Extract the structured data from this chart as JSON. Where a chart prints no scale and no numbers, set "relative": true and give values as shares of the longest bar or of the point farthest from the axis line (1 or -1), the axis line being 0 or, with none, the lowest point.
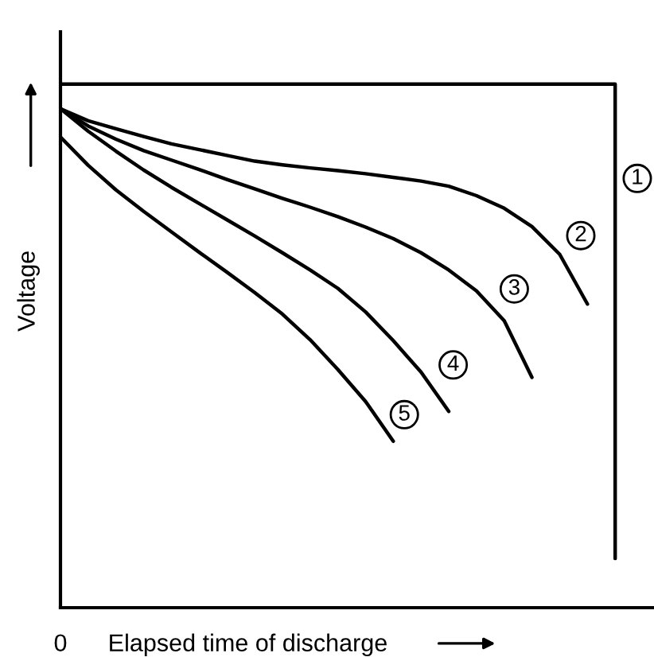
{
  "chart_data": {
    "type": "line",
    "relative": true,
    "xlabel": "Elapsed time of discharge",
    "ylabel": "Voltage",
    "annotations": [
      "0"
    ],
    "marker": "none",
    "line_style": "solid",
    "categories": [
      null,
      null,
      null,
      null,
      null,
      null,
      null,
      null,
      null,
      null,
      null,
      null,
      null,
      null,
      null,
      null,
      null,
      null,
      null,
      null,
      null
    ],
    "series": [
      {
        "name": "1",
        "type": "step",
        "color": "#000000",
        "values": [
          1,
          1,
          1,
          1,
          1,
          1,
          1,
          1,
          1,
          1,
          1,
          1,
          1,
          1,
          1,
          1,
          1,
          1,
          1,
          1,
          0.094
        ]
      },
      {
        "name": "2",
        "color": "#000000",
        "values": [
          0.953,
          0.93,
          0.915,
          0.9,
          0.886,
          0.875,
          0.864,
          0.853,
          0.846,
          0.84,
          0.835,
          0.829,
          0.822,
          0.815,
          0.805,
          0.787,
          0.763,
          0.728,
          0.675,
          0.58,
          null
        ]
      },
      {
        "name": "3",
        "color": "#000000",
        "values": [
          0.953,
          0.92,
          0.895,
          0.873,
          0.855,
          0.837,
          0.818,
          0.8,
          0.782,
          0.765,
          0.747,
          0.727,
          0.705,
          0.678,
          0.645,
          0.605,
          0.548,
          0.44,
          null,
          null,
          null
        ]
      },
      {
        "name": "4",
        "color": "#000000",
        "values": [
          0.953,
          0.91,
          0.872,
          0.836,
          0.803,
          0.772,
          0.741,
          0.71,
          0.678,
          0.645,
          0.61,
          0.565,
          0.51,
          0.45,
          0.375,
          null,
          null,
          null,
          null,
          null,
          null
        ]
      },
      {
        "name": "5",
        "color": "#000000",
        "values": [
          0.899,
          0.845,
          0.798,
          0.757,
          0.718,
          0.679,
          0.641,
          0.602,
          0.561,
          0.512,
          0.455,
          0.394,
          0.318,
          null,
          null,
          null,
          null,
          null,
          null,
          null,
          null
        ]
      }
    ]
  }
}
